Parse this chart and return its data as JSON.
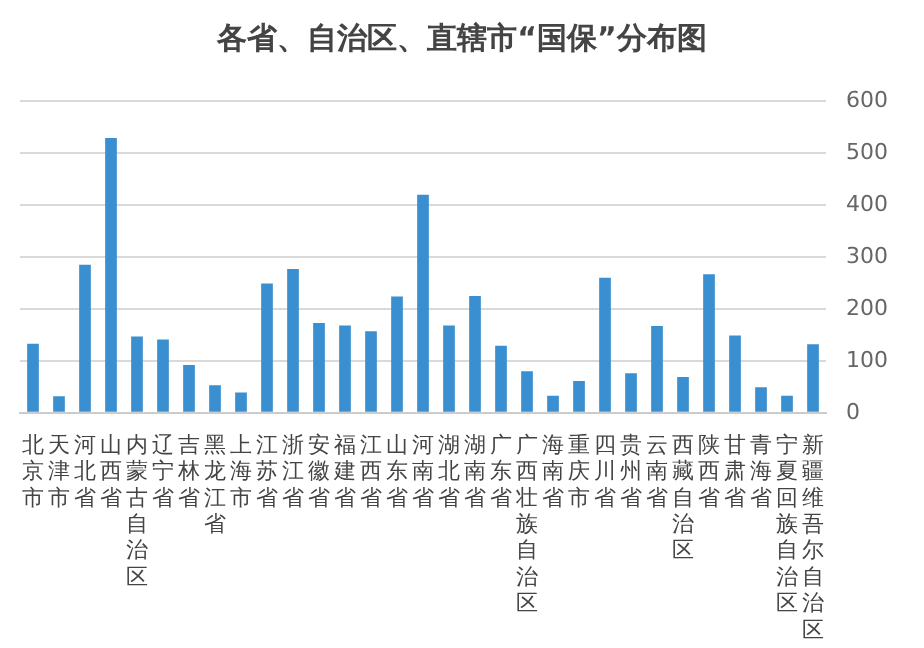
{
  "chart_data": {
    "type": "bar",
    "title": "各省、自治区、直辖市“国保”分布图",
    "categories": [
      "北京市",
      "天津市",
      "河北省",
      "山西省",
      "内蒙古自治区",
      "辽宁省",
      "吉林省",
      "黑龙江省",
      "上海市",
      "江苏省",
      "浙江省",
      "安徽省",
      "福建省",
      "江西省",
      "山东省",
      "河南省",
      "湖北省",
      "湖南省",
      "广东省",
      "广西壮族自治区",
      "海南省",
      "重庆市",
      "四川省",
      "贵州省",
      "云南省",
      "西藏自治区",
      "陕西省",
      "甘肃省",
      "青海省",
      "宁夏回族自治区",
      "新疆维吾尔自治区"
    ],
    "values": [
      133,
      32,
      285,
      529,
      147,
      141,
      92,
      53,
      39,
      249,
      277,
      173,
      168,
      157,
      224,
      420,
      168,
      225,
      129,
      80,
      33,
      61,
      260,
      76,
      167,
      69,
      267,
      149,
      49,
      33,
      132
    ],
    "color": "#3a8fd0",
    "ylim": [
      0,
      600
    ],
    "yticks": [
      0,
      100,
      200,
      300,
      400,
      500,
      600
    ],
    "grid": "y",
    "legend": false
  }
}
